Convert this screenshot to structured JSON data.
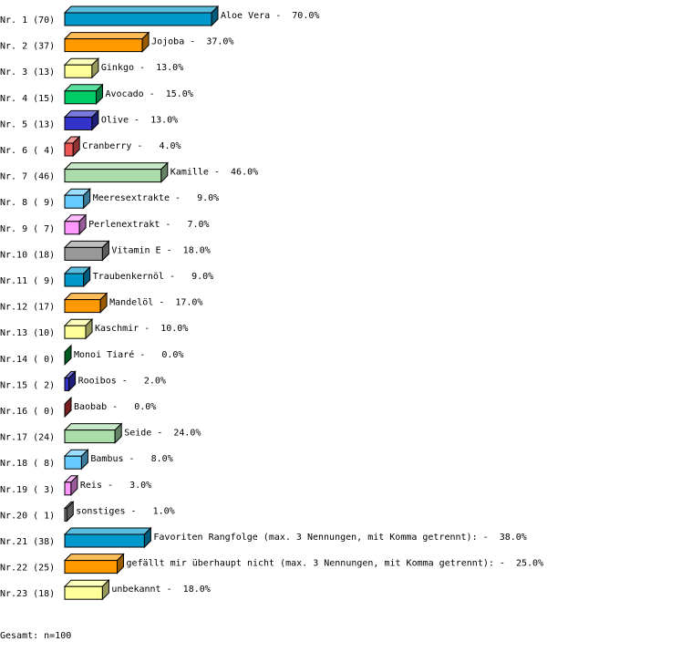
{
  "chart_data": {
    "type": "bar",
    "orientation": "horizontal",
    "style": "3d",
    "categories": [
      "Aloe Vera",
      "Jojoba",
      "Ginkgo",
      "Avocado",
      "Olive",
      "Cranberry",
      "Kamille",
      "Meeresextrakte",
      "Perlenextrakt",
      "Vitamin E",
      "Traubenkernöl",
      "Mandelöl",
      "Kaschmir",
      "Monoi Tiaré",
      "Rooibos",
      "Baobab",
      "Seide",
      "Bambus",
      "Reis",
      "sonstiges",
      "Favoriten Rangfolge (max. 3 Nennungen, mit Komma getrennt):",
      "gefällt mir überhaupt nicht (max. 3 Nennungen, mit Komma getrennt):",
      "unbekannt"
    ],
    "row_labels": [
      "Nr. 1 (70)",
      "Nr. 2 (37)",
      "Nr. 3 (13)",
      "Nr. 4 (15)",
      "Nr. 5 (13)",
      "Nr. 6 ( 4)",
      "Nr. 7 (46)",
      "Nr. 8 ( 9)",
      "Nr. 9 ( 7)",
      "Nr.10 (18)",
      "Nr.11 ( 9)",
      "Nr.12 (17)",
      "Nr.13 (10)",
      "Nr.14 ( 0)",
      "Nr.15 ( 2)",
      "Nr.16 ( 0)",
      "Nr.17 (24)",
      "Nr.18 ( 8)",
      "Nr.19 ( 3)",
      "Nr.20 ( 1)",
      "Nr.21 (38)",
      "Nr.22 (25)",
      "Nr.23 (18)"
    ],
    "values": [
      70,
      37,
      13,
      15,
      13,
      4,
      46,
      9,
      7,
      18,
      9,
      17,
      10,
      0,
      2,
      0,
      24,
      8,
      3,
      1,
      38,
      25,
      18
    ],
    "percent_labels": [
      "70.0%",
      "37.0%",
      "13.0%",
      "15.0%",
      "13.0%",
      "4.0%",
      "46.0%",
      "9.0%",
      "7.0%",
      "18.0%",
      "9.0%",
      "17.0%",
      "10.0%",
      "0.0%",
      "2.0%",
      "0.0%",
      "24.0%",
      "8.0%",
      "3.0%",
      "1.0%",
      "38.0%",
      "25.0%",
      "18.0%"
    ],
    "colors": [
      "#0099cc",
      "#ff9900",
      "#ffff99",
      "#00cc66",
      "#3333cc",
      "#ee5555",
      "#aaddaa",
      "#66ccff",
      "#ff99ff",
      "#999999",
      "#0099cc",
      "#ff9900",
      "#ffff99",
      "#009933",
      "#3333cc",
      "#cc3333",
      "#aaddaa",
      "#66ccff",
      "#ff99ff",
      "#999999",
      "#0099cc",
      "#ff9900",
      "#ffff99"
    ]
  },
  "footer": {
    "total": "Gesamt: n=100"
  }
}
